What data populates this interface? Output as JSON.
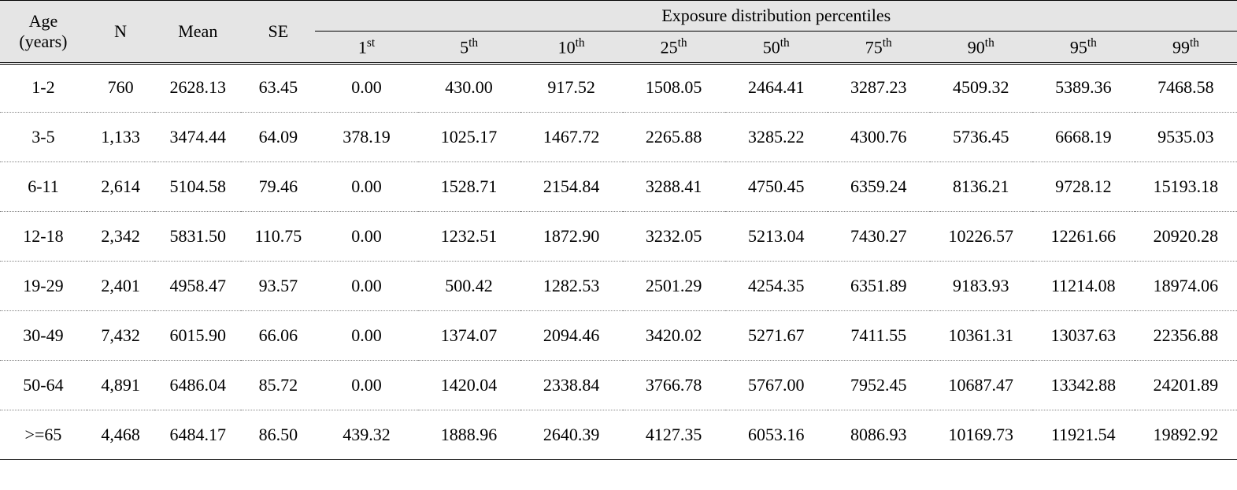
{
  "table": {
    "type": "table",
    "background_color": "#ffffff",
    "header_background": "#e5e5e5",
    "border_color": "#000000",
    "dotted_border_color": "#888888",
    "font_family": "Times New Roman",
    "body_fontsize": 22,
    "columns": {
      "age_line1": "Age",
      "age_line2": "(years)",
      "n": "N",
      "mean": "Mean",
      "se": "SE",
      "group": "Exposure distribution percentiles",
      "percentiles": [
        {
          "num": "1",
          "ord": "st"
        },
        {
          "num": "5",
          "ord": "th"
        },
        {
          "num": "10",
          "ord": "th"
        },
        {
          "num": "25",
          "ord": "th"
        },
        {
          "num": "50",
          "ord": "th"
        },
        {
          "num": "75",
          "ord": "th"
        },
        {
          "num": "90",
          "ord": "th"
        },
        {
          "num": "95",
          "ord": "th"
        },
        {
          "num": "99",
          "ord": "th"
        }
      ]
    },
    "rows": [
      {
        "age": "1-2",
        "n": "760",
        "mean": "2628.13",
        "se": "63.45",
        "p": [
          "0.00",
          "430.00",
          "917.52",
          "1508.05",
          "2464.41",
          "3287.23",
          "4509.32",
          "5389.36",
          "7468.58"
        ]
      },
      {
        "age": "3-5",
        "n": "1,133",
        "mean": "3474.44",
        "se": "64.09",
        "p": [
          "378.19",
          "1025.17",
          "1467.72",
          "2265.88",
          "3285.22",
          "4300.76",
          "5736.45",
          "6668.19",
          "9535.03"
        ]
      },
      {
        "age": "6-11",
        "n": "2,614",
        "mean": "5104.58",
        "se": "79.46",
        "p": [
          "0.00",
          "1528.71",
          "2154.84",
          "3288.41",
          "4750.45",
          "6359.24",
          "8136.21",
          "9728.12",
          "15193.18"
        ]
      },
      {
        "age": "12-18",
        "n": "2,342",
        "mean": "5831.50",
        "se": "110.75",
        "p": [
          "0.00",
          "1232.51",
          "1872.90",
          "3232.05",
          "5213.04",
          "7430.27",
          "10226.57",
          "12261.66",
          "20920.28"
        ]
      },
      {
        "age": "19-29",
        "n": "2,401",
        "mean": "4958.47",
        "se": "93.57",
        "p": [
          "0.00",
          "500.42",
          "1282.53",
          "2501.29",
          "4254.35",
          "6351.89",
          "9183.93",
          "11214.08",
          "18974.06"
        ]
      },
      {
        "age": "30-49",
        "n": "7,432",
        "mean": "6015.90",
        "se": "66.06",
        "p": [
          "0.00",
          "1374.07",
          "2094.46",
          "3420.02",
          "5271.67",
          "7411.55",
          "10361.31",
          "13037.63",
          "22356.88"
        ]
      },
      {
        "age": "50-64",
        "n": "4,891",
        "mean": "6486.04",
        "se": "85.72",
        "p": [
          "0.00",
          "1420.04",
          "2338.84",
          "3766.78",
          "5767.00",
          "7952.45",
          "10687.47",
          "13342.88",
          "24201.89"
        ]
      },
      {
        "age": ">=65",
        "n": "4,468",
        "mean": "6484.17",
        "se": "86.50",
        "p": [
          "439.32",
          "1888.96",
          "2640.39",
          "4127.35",
          "6053.16",
          "8086.93",
          "10169.73",
          "11921.54",
          "19892.92"
        ]
      }
    ]
  }
}
